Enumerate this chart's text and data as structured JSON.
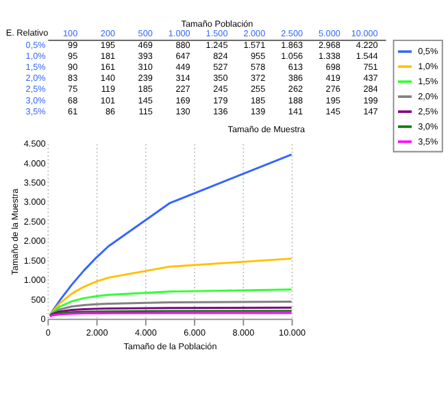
{
  "chart_data": [
    {
      "type": "heatmap",
      "xlabel": "Tamaño Población",
      "ylabel": "E. Relativo",
      "categories": [
        "100",
        "200",
        "500",
        "1.000",
        "1.500",
        "2.000",
        "2.500",
        "5.000",
        "10.000"
      ],
      "y_categories": [
        "0,5%",
        "1,0%",
        "1,5%",
        "2,0%",
        "2,5%",
        "3,0%",
        "3,5%"
      ],
      "cells": [
        [
          99,
          195,
          469,
          880,
          1245,
          1571,
          1863,
          2968,
          4220
        ],
        [
          95,
          181,
          393,
          647,
          824,
          955,
          1056,
          1338,
          1544
        ],
        [
          90,
          161,
          310,
          449,
          527,
          578,
          613,
          698,
          751
        ],
        [
          83,
          140,
          239,
          314,
          350,
          372,
          386,
          419,
          437
        ],
        [
          75,
          119,
          185,
          227,
          245,
          255,
          262,
          276,
          284
        ],
        [
          68,
          101,
          145,
          169,
          179,
          185,
          188,
          195,
          199
        ],
        [
          61,
          86,
          115,
          130,
          136,
          139,
          141,
          145,
          147
        ]
      ],
      "cell_labels": [
        [
          "99",
          "195",
          "469",
          "880",
          "1.245",
          "1.571",
          "1.863",
          "2.968",
          "4.220"
        ],
        [
          "95",
          "181",
          "393",
          "647",
          "824",
          "955",
          "1.056",
          "1.338",
          "1.544"
        ],
        [
          "90",
          "161",
          "310",
          "449",
          "527",
          "578",
          "613",
          "698",
          "751"
        ],
        [
          "83",
          "140",
          "239",
          "314",
          "350",
          "372",
          "386",
          "419",
          "437"
        ],
        [
          "75",
          "119",
          "185",
          "227",
          "245",
          "255",
          "262",
          "276",
          "284"
        ],
        [
          "68",
          "101",
          "145",
          "169",
          "179",
          "185",
          "188",
          "195",
          "199"
        ],
        [
          "61",
          "86",
          "115",
          "130",
          "136",
          "139",
          "141",
          "145",
          "147"
        ]
      ]
    },
    {
      "type": "line",
      "title": "Tamaño de Muestra",
      "xlabel": "Tamaño de la Población",
      "ylabel": "Tamaño de la Muestra",
      "x": [
        100,
        200,
        500,
        1000,
        1500,
        2000,
        2500,
        5000,
        10000
      ],
      "series": [
        {
          "name": "0,5%",
          "color": "#3366ff",
          "values": [
            99,
            195,
            469,
            880,
            1245,
            1571,
            1863,
            2968,
            4220
          ]
        },
        {
          "name": "1,0%",
          "color": "#ffc000",
          "values": [
            95,
            181,
            393,
            647,
            824,
            955,
            1056,
            1338,
            1544
          ]
        },
        {
          "name": "1,5%",
          "color": "#33ff33",
          "values": [
            90,
            161,
            310,
            449,
            527,
            578,
            613,
            698,
            751
          ]
        },
        {
          "name": "2,0%",
          "color": "#808080",
          "values": [
            83,
            140,
            239,
            314,
            350,
            372,
            386,
            419,
            437
          ]
        },
        {
          "name": "2,5%",
          "color": "#800080",
          "values": [
            75,
            119,
            185,
            227,
            245,
            255,
            262,
            276,
            284
          ]
        },
        {
          "name": "3,0%",
          "color": "#008000",
          "values": [
            68,
            101,
            145,
            169,
            179,
            185,
            188,
            195,
            199
          ]
        },
        {
          "name": "3,5%",
          "color": "#ff00ff",
          "values": [
            61,
            86,
            115,
            130,
            136,
            139,
            141,
            145,
            147
          ]
        }
      ],
      "xlim": [
        0,
        10000
      ],
      "xticks": [
        0,
        {
          "value": 2000,
          "label": "2.000"
        },
        {
          "value": 4000,
          "label": "4.000"
        },
        {
          "value": 6000,
          "label": "6.000"
        },
        {
          "value": 8000,
          "label": "8.000"
        },
        {
          "value": 10000,
          "label": "10.000"
        }
      ],
      "ylim": [
        0,
        4500
      ],
      "yticks": [
        0,
        500,
        {
          "value": 1000,
          "label": "1.000"
        },
        {
          "value": 1500,
          "label": "1.500"
        },
        {
          "value": 2000,
          "label": "2.000"
        },
        {
          "value": 2500,
          "label": "2.500"
        },
        {
          "value": 3000,
          "label": "3.000"
        },
        {
          "value": 3500,
          "label": "3.500"
        },
        {
          "value": 4000,
          "label": "4.000"
        },
        {
          "value": 4500,
          "label": "4.500"
        }
      ],
      "grid": "x",
      "legend": "right",
      "marker": "none",
      "line_style": "solid"
    }
  ]
}
